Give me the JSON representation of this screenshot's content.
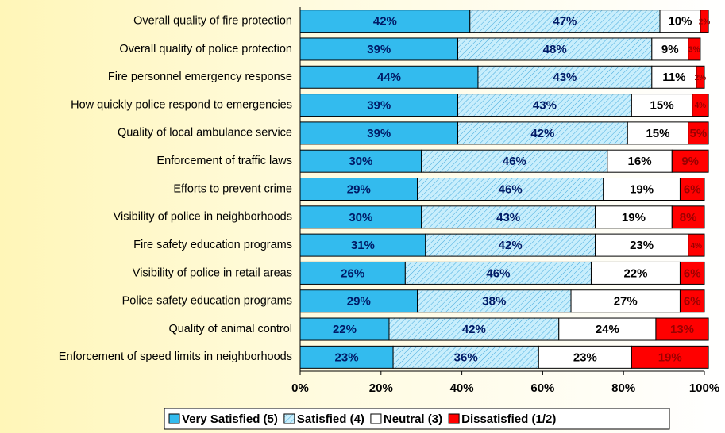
{
  "chart_data": {
    "type": "stacked_bar_horizontal",
    "categories": [
      "Overall quality of fire protection",
      "Overall quality of police protection",
      "Fire personnel emergency response",
      "How quickly police respond to emergencies",
      "Quality of local ambulance service",
      "Enforcement of traffic laws",
      "Efforts to prevent crime",
      "Visibility of police in neighborhoods",
      "Fire safety education programs",
      "Visibility of police in retail areas",
      "Police safety education programs",
      "Quality of animal control",
      "Enforcement of speed limits in neighborhoods"
    ],
    "series": [
      {
        "name": "Very Satisfied (5)",
        "color": "#33bbee",
        "values": [
          42,
          39,
          44,
          39,
          39,
          30,
          29,
          30,
          31,
          26,
          29,
          22,
          23
        ],
        "value_labels": [
          "42%",
          "39%",
          "44%",
          "39%",
          "39%",
          "30%",
          "29%",
          "30%",
          "31%",
          "26%",
          "29%",
          "22%",
          "23%"
        ]
      },
      {
        "name": "Satisfied (4)",
        "color": "#c8eefc",
        "hatch": true,
        "values": [
          47,
          48,
          43,
          43,
          42,
          46,
          46,
          43,
          42,
          46,
          38,
          42,
          36
        ],
        "value_labels": [
          "47%",
          "48%",
          "43%",
          "43%",
          "42%",
          "46%",
          "46%",
          "43%",
          "42%",
          "46%",
          "38%",
          "42%",
          "36%"
        ]
      },
      {
        "name": "Neutral (3)",
        "color": "#ffffff",
        "values": [
          10,
          9,
          11,
          15,
          15,
          16,
          19,
          19,
          23,
          22,
          27,
          24,
          23
        ],
        "value_labels": [
          "10%",
          "9%",
          "11%",
          "15%",
          "15%",
          "16%",
          "19%",
          "19%",
          "23%",
          "22%",
          "27%",
          "24%",
          "23%"
        ]
      },
      {
        "name": "Dissatisfied (1/2)",
        "color": "#ff0000",
        "values": [
          2,
          3,
          2,
          4,
          5,
          9,
          6,
          8,
          4,
          6,
          6,
          13,
          19
        ],
        "value_labels": [
          "2%",
          "3%",
          "2%",
          "4%",
          "5%",
          "9%",
          "6%",
          "8%",
          "4%",
          "6%",
          "6%",
          "13%",
          "19%"
        ]
      }
    ],
    "xlim": [
      0,
      100
    ],
    "xticks": [
      {
        "value": 0,
        "label": "0%"
      },
      {
        "value": 20,
        "label": "20%"
      },
      {
        "value": 40,
        "label": "40%"
      },
      {
        "value": 60,
        "label": "60%"
      },
      {
        "value": 80,
        "label": "80%"
      },
      {
        "value": 100,
        "label": "100%"
      }
    ],
    "legend": "bottom"
  }
}
